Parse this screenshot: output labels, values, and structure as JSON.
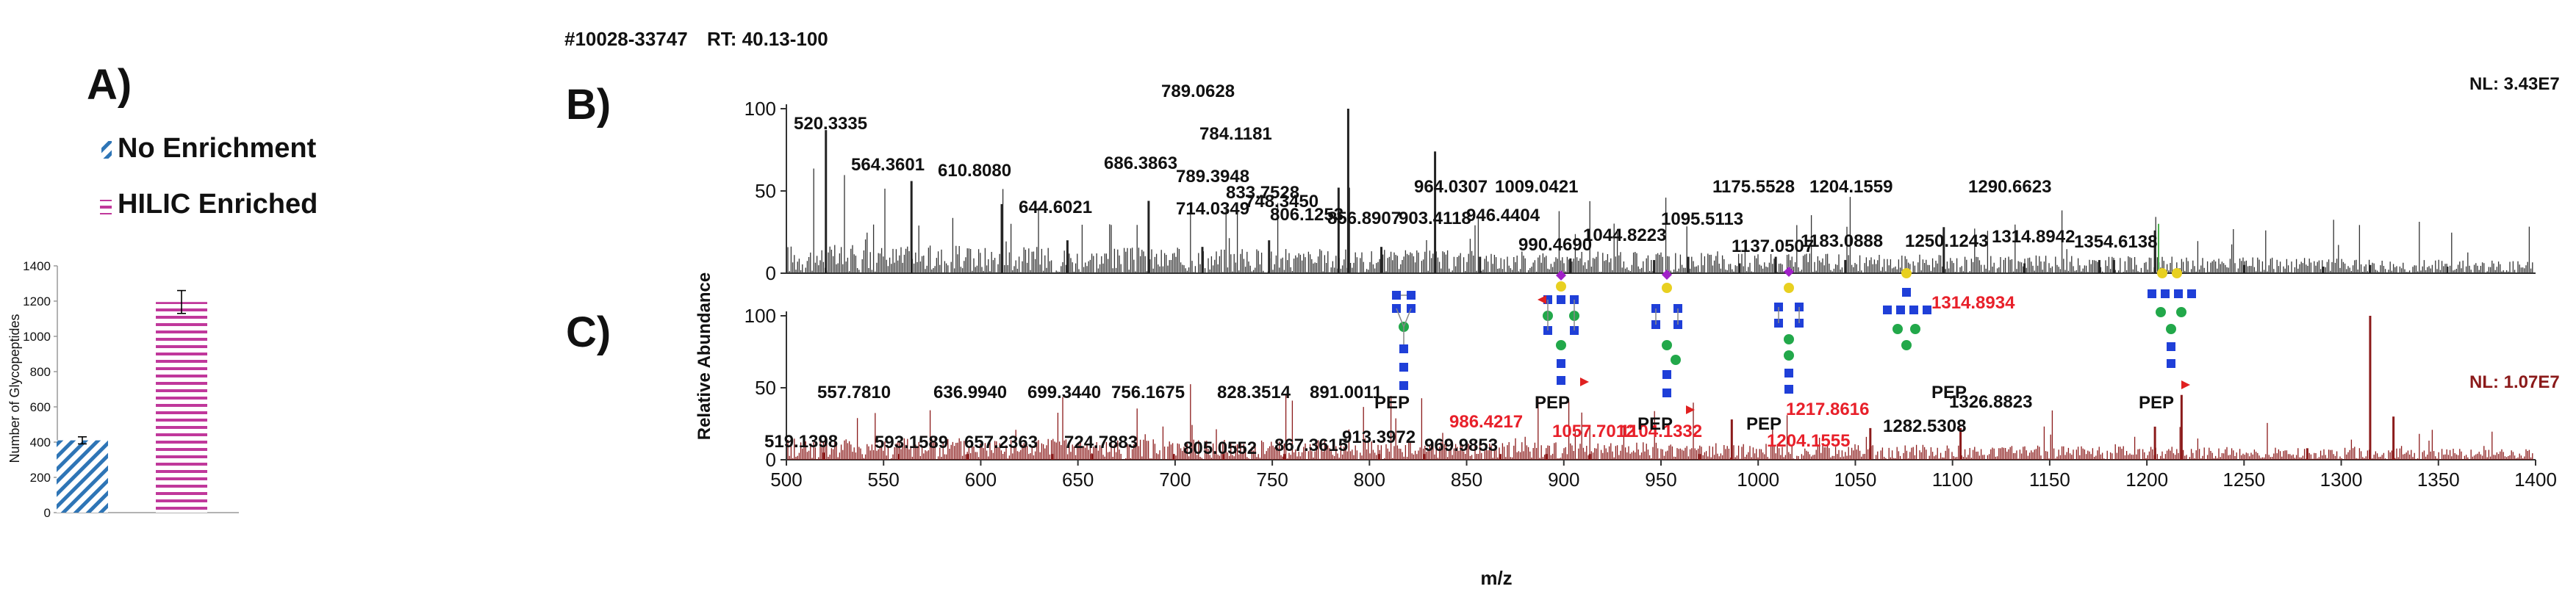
{
  "header": {
    "scan_info": "#10028-33747",
    "rt_label": "RT: 40.13-100"
  },
  "chart_data": [
    {
      "type": "bar",
      "panel_label": "A)",
      "categories": [
        "No Enrichment",
        "HILIC Enriched"
      ],
      "values": [
        410,
        1195
      ],
      "errors": [
        20,
        65
      ],
      "ylabel": "Number of Glycopeptides",
      "ylim": [
        0,
        1400
      ],
      "yticks": [
        "0",
        "200",
        "400",
        "600",
        "800",
        "1000",
        "1200",
        "1400"
      ],
      "legend": [
        {
          "label": "No Enrichment",
          "pattern": "diagonal",
          "color": "#2E75B6"
        },
        {
          "label": "HILIC Enriched",
          "pattern": "horizontal",
          "color": "#C0389B"
        }
      ]
    },
    {
      "type": "line",
      "subtype": "mass-spectrum",
      "panel_label": "B)",
      "normalization": "NL: 3.43E7",
      "color": "#222222",
      "ylabel": "Relative Abundance",
      "ylim": [
        0,
        100
      ],
      "yticks": [
        "0",
        "50",
        "100"
      ],
      "peaks": [
        {
          "mz": 520.3335,
          "rel": 87,
          "label": "520.3335"
        },
        {
          "mz": 564.3601,
          "rel": 56,
          "label": "564.3601"
        },
        {
          "mz": 610.808,
          "rel": 42,
          "label": "610.8080"
        },
        {
          "mz": 644.6021,
          "rel": 20,
          "label": "644.6021"
        },
        {
          "mz": 686.3863,
          "rel": 44,
          "label": "686.3863"
        },
        {
          "mz": 714.0349,
          "rel": 16,
          "label": "714.0349"
        },
        {
          "mz": 748.345,
          "rel": 20,
          "label": "748.3450"
        },
        {
          "mz": 784.1181,
          "rel": 52,
          "label": "784.1181"
        },
        {
          "mz": 789.0628,
          "rel": 100,
          "label": "789.0628"
        },
        {
          "mz": 789.3948,
          "rel": 52,
          "label": "789.3948"
        },
        {
          "mz": 806.1253,
          "rel": 16,
          "label": "806.1253"
        },
        {
          "mz": 833.7528,
          "rel": 74,
          "label": "833.7528"
        },
        {
          "mz": 856.8907,
          "rel": 10,
          "label": "856.8907"
        },
        {
          "mz": 903.4118,
          "rel": 9,
          "label": "903.4118"
        },
        {
          "mz": 946.4404,
          "rel": 8,
          "label": "946.4404"
        },
        {
          "mz": 964.0307,
          "rel": 10,
          "label": "964.0307"
        },
        {
          "mz": 990.469,
          "rel": 6,
          "label": "990.4690"
        },
        {
          "mz": 1009.0421,
          "rel": 10,
          "label": "1009.0421"
        },
        {
          "mz": 1044.8223,
          "rel": 8,
          "label": "1044.8223"
        },
        {
          "mz": 1095.5113,
          "rel": 28,
          "label": "1095.5113"
        },
        {
          "mz": 1137.0507,
          "rel": 6,
          "label": "1137.0507"
        },
        {
          "mz": 1175.5528,
          "rel": 8,
          "label": "1175.5528"
        },
        {
          "mz": 1183.0888,
          "rel": 8,
          "label": "1183.0888"
        },
        {
          "mz": 1204.1559,
          "rel": 26,
          "label": "1204.1559"
        },
        {
          "mz": 1250.1243,
          "rel": 5,
          "label": "1250.1243"
        },
        {
          "mz": 1290.6623,
          "rel": 4,
          "label": "1290.6623"
        },
        {
          "mz": 1314.8942,
          "rel": 5,
          "label": "1314.8942"
        },
        {
          "mz": 1354.6138,
          "rel": 4,
          "label": "1354.6138"
        }
      ]
    },
    {
      "type": "line",
      "subtype": "mass-spectrum",
      "panel_label": "C)",
      "normalization": "NL: 1.07E7",
      "color": "#8B1A1A",
      "highlight_color": "#E8202A",
      "ylabel": "Relative Abundance",
      "xlabel": "m/z",
      "xlim": [
        500,
        1400
      ],
      "ylim": [
        0,
        100
      ],
      "yticks": [
        "0",
        "50",
        "100"
      ],
      "xticks": [
        "500",
        "550",
        "600",
        "650",
        "700",
        "750",
        "800",
        "850",
        "900",
        "950",
        "1000",
        "1050",
        "1100",
        "1150",
        "1200",
        "1250",
        "1300",
        "1350",
        "1400"
      ],
      "peaks": [
        {
          "mz": 519.1398,
          "rel": 5,
          "label": "519.1398",
          "highlight": false
        },
        {
          "mz": 557.781,
          "rel": 4,
          "label": "557.7810",
          "highlight": false
        },
        {
          "mz": 593.1589,
          "rel": 4,
          "label": "593.1589",
          "highlight": false
        },
        {
          "mz": 636.994,
          "rel": 4,
          "label": "636.9940",
          "highlight": false
        },
        {
          "mz": 657.2363,
          "rel": 4,
          "label": "657.2363",
          "highlight": false
        },
        {
          "mz": 699.344,
          "rel": 4,
          "label": "699.3440",
          "highlight": false
        },
        {
          "mz": 724.7883,
          "rel": 4,
          "label": "724.7883",
          "highlight": false
        },
        {
          "mz": 756.1675,
          "rel": 4,
          "label": "756.1675",
          "highlight": false
        },
        {
          "mz": 805.0552,
          "rel": 4,
          "label": "805.0552",
          "highlight": false
        },
        {
          "mz": 828.3514,
          "rel": 4,
          "label": "828.3514",
          "highlight": false
        },
        {
          "mz": 867.3615,
          "rel": 4,
          "label": "867.3615",
          "highlight": false
        },
        {
          "mz": 891.0011,
          "rel": 4,
          "label": "891.0011",
          "highlight": false
        },
        {
          "mz": 913.3972,
          "rel": 4,
          "label": "913.3972",
          "highlight": false
        },
        {
          "mz": 969.9853,
          "rel": 4,
          "label": "969.9853",
          "highlight": false
        },
        {
          "mz": 986.4217,
          "rel": 28,
          "label": "986.4217",
          "highlight": true
        },
        {
          "mz": 1057.7012,
          "rel": 22,
          "label": "1057.7012",
          "highlight": true
        },
        {
          "mz": 1104.1332,
          "rel": 22,
          "label": "1104.1332",
          "highlight": true
        },
        {
          "mz": 1204.1555,
          "rel": 23,
          "label": "1204.1555",
          "highlight": true
        },
        {
          "mz": 1217.8616,
          "rel": 45,
          "label": "1217.8616",
          "highlight": true
        },
        {
          "mz": 1282.5308,
          "rel": 8,
          "label": "1282.5308",
          "highlight": false
        },
        {
          "mz": 1314.8934,
          "rel": 100,
          "label": "1314.8934",
          "highlight": true
        },
        {
          "mz": 1326.8823,
          "rel": 30,
          "label": "1326.8823",
          "highlight": false
        }
      ],
      "annotations": [
        {
          "text": "PEP",
          "glycan": "high-mannose"
        },
        {
          "text": "PEP",
          "glycan": "fucosylated-triantennary"
        },
        {
          "text": "PEP",
          "glycan": "sialylated-biantennary"
        },
        {
          "text": "PEP",
          "glycan": "galactosylated-biantennary"
        },
        {
          "text": "PEP",
          "glycan": "hybrid"
        },
        {
          "text": "PEP",
          "glycan": "complex-fucosylated"
        }
      ]
    }
  ]
}
